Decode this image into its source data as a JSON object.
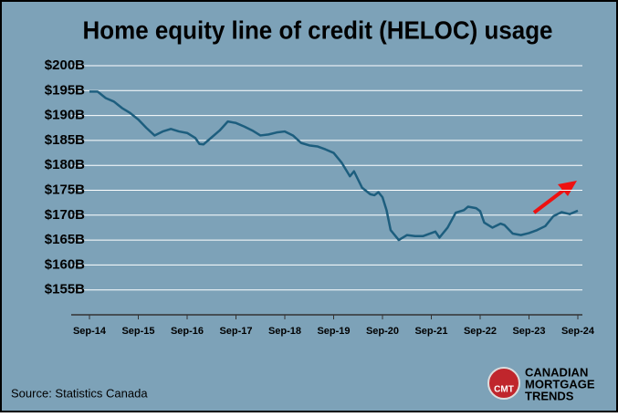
{
  "chart_data": {
    "type": "line",
    "title": "Home equity line of credit (HELOC) usage",
    "source": "Source: Statistics Canada",
    "logo": {
      "badge": "CMT",
      "lines": [
        "CANADIAN",
        "MORTGAGE",
        "TRENDS"
      ]
    },
    "xlim": [
      "2014-09",
      "2024-09"
    ],
    "xticks": [
      {
        "value": "2014-09",
        "label": "Sep-14"
      },
      {
        "value": "2015-09",
        "label": "Sep-15"
      },
      {
        "value": "2016-09",
        "label": "Sep-16"
      },
      {
        "value": "2017-09",
        "label": "Sep-17"
      },
      {
        "value": "2018-09",
        "label": "Sep-18"
      },
      {
        "value": "2019-09",
        "label": "Sep-19"
      },
      {
        "value": "2020-09",
        "label": "Sep-20"
      },
      {
        "value": "2021-09",
        "label": "Sep-21"
      },
      {
        "value": "2022-09",
        "label": "Sep-22"
      },
      {
        "value": "2023-09",
        "label": "Sep-23"
      },
      {
        "value": "2024-09",
        "label": "Sep-24"
      }
    ],
    "ylim": [
      150,
      200
    ],
    "yticks": [
      {
        "value": 155,
        "label": "$155B"
      },
      {
        "value": 160,
        "label": "$160B"
      },
      {
        "value": 165,
        "label": "$165B"
      },
      {
        "value": 170,
        "label": "$170B"
      },
      {
        "value": 175,
        "label": "$175B"
      },
      {
        "value": 180,
        "label": "$180B"
      },
      {
        "value": 185,
        "label": "$185B"
      },
      {
        "value": 190,
        "label": "$190B"
      },
      {
        "value": 195,
        "label": "$195B"
      },
      {
        "value": 200,
        "label": "$200B"
      }
    ],
    "grid": true,
    "x": [
      "2014-09",
      "2014-11",
      "2015-01",
      "2015-03",
      "2015-05",
      "2015-07",
      "2015-09",
      "2015-11",
      "2016-01",
      "2016-03",
      "2016-05",
      "2016-07",
      "2016-09",
      "2016-11",
      "2016-12",
      "2017-01",
      "2017-03",
      "2017-05",
      "2017-07",
      "2017-09",
      "2017-11",
      "2018-01",
      "2018-03",
      "2018-05",
      "2018-07",
      "2018-09",
      "2018-11",
      "2019-01",
      "2019-03",
      "2019-05",
      "2019-07",
      "2019-09",
      "2019-11",
      "2020-01",
      "2020-02",
      "2020-04",
      "2020-06",
      "2020-07",
      "2020-08",
      "2020-09",
      "2020-10",
      "2020-11",
      "2021-01",
      "2021-03",
      "2021-05",
      "2021-07",
      "2021-09",
      "2021-10",
      "2021-11",
      "2022-01",
      "2022-03",
      "2022-05",
      "2022-06",
      "2022-08",
      "2022-09",
      "2022-10",
      "2022-12",
      "2023-02",
      "2023-03",
      "2023-05",
      "2023-07",
      "2023-09",
      "2023-11",
      "2024-01",
      "2024-03",
      "2024-05",
      "2024-07",
      "2024-09"
    ],
    "series": [
      {
        "color": "#1d5e7e",
        "values": [
          194.8,
          194.8,
          193.5,
          192.8,
          191.5,
          190.5,
          189.2,
          187.5,
          186.0,
          186.8,
          187.3,
          186.8,
          186.5,
          185.5,
          184.3,
          184.2,
          185.6,
          187.0,
          188.8,
          188.5,
          187.8,
          187.0,
          186.0,
          186.2,
          186.6,
          186.8,
          186.0,
          184.5,
          184.0,
          183.8,
          183.2,
          182.5,
          180.5,
          177.8,
          178.8,
          175.5,
          174.2,
          174.0,
          174.6,
          173.6,
          171.0,
          167.0,
          165.0,
          166.0,
          165.8,
          165.8,
          166.4,
          166.7,
          165.5,
          167.5,
          170.5,
          171.0,
          171.7,
          171.4,
          170.8,
          168.5,
          167.5,
          168.3,
          168.0,
          166.3,
          166.0,
          166.4,
          167.0,
          167.8,
          169.8,
          170.6,
          170.2,
          170.9
        ]
      }
    ]
  }
}
